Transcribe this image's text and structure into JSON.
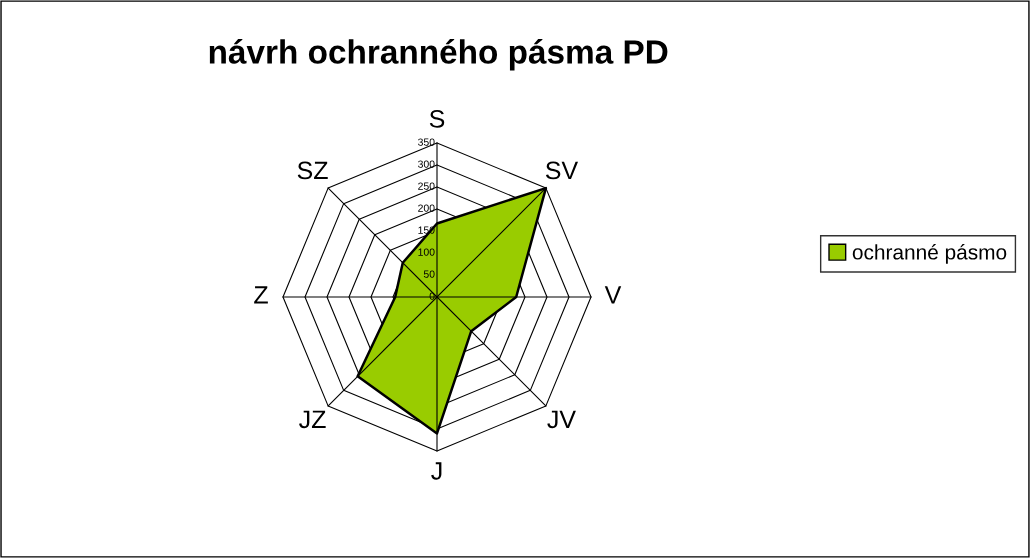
{
  "chart_data": {
    "type": "radar",
    "title": "návrh ochranného pásma PD",
    "categories": [
      "S",
      "SV",
      "V",
      "JV",
      "J",
      "JZ",
      "Z",
      "SZ"
    ],
    "series": [
      {
        "name": "ochranné pásmo",
        "color": "#99cc00",
        "values": [
          167,
          350,
          180,
          110,
          310,
          255,
          95,
          110
        ]
      }
    ],
    "ylim": [
      0,
      350
    ],
    "yticks": [
      0,
      50,
      100,
      150,
      200,
      250,
      300,
      350
    ],
    "legend": "right",
    "grid": true
  }
}
